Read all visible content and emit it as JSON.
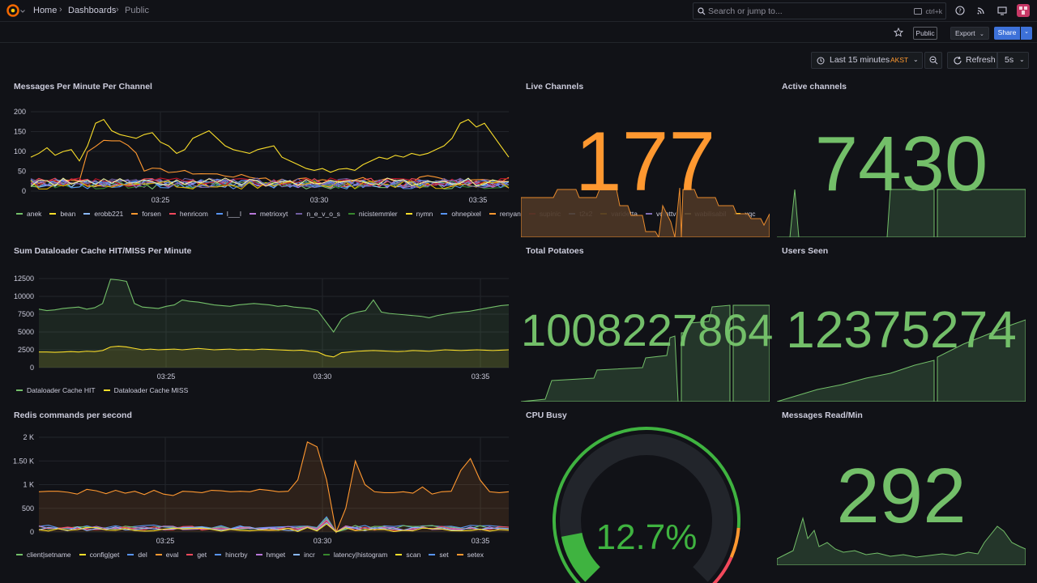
{
  "topbar": {
    "breadcrumbs": [
      "Home",
      "Dashboards",
      "Public"
    ],
    "search_placeholder": "Search or jump to...",
    "search_shortcut": "ctrl+k",
    "icons": [
      "grafana-logo",
      "help-icon",
      "rss-icon",
      "screen-icon",
      "avatar"
    ]
  },
  "toolbar": {
    "public_badge": "Public",
    "export_label": "Export",
    "share_label": "Share",
    "time_range": "Last 15 minutes",
    "timezone": "AKST",
    "refresh_label": "Refresh",
    "refresh_interval": "5s"
  },
  "colors": {
    "green": "#73bf69",
    "orange": "#ff9830",
    "yellow": "#fade2a",
    "blue": "#5794f2",
    "red": "#f2495c",
    "bg": "#111217"
  },
  "panels": {
    "messages": {
      "title": "Messages Per Minute Per Channel",
      "x_ticks": [
        "03:25",
        "03:30",
        "03:35"
      ],
      "y_ticks": [
        "0",
        "50",
        "100",
        "150",
        "200"
      ],
      "legend": [
        {
          "name": "anek",
          "color": "#73bf69"
        },
        {
          "name": "bean",
          "color": "#fade2a"
        },
        {
          "name": "erobb221",
          "color": "#8ab8ff"
        },
        {
          "name": "forsen",
          "color": "#ff9830"
        },
        {
          "name": "henricom",
          "color": "#f2495c"
        },
        {
          "name": "l___l",
          "color": "#5794f2"
        },
        {
          "name": "metrioxyt",
          "color": "#b877d9"
        },
        {
          "name": "n_e_v_o_s",
          "color": "#705da0"
        },
        {
          "name": "nicistemmler",
          "color": "#37872d"
        },
        {
          "name": "nymn",
          "color": "#fade2a"
        },
        {
          "name": "ohnepixel",
          "color": "#5794f2"
        },
        {
          "name": "renyan",
          "color": "#ff9830"
        },
        {
          "name": "supinic",
          "color": "#c4162a"
        },
        {
          "name": "t2x2",
          "color": "#8ab8ff"
        },
        {
          "name": "varidetta",
          "color": "#e0b400"
        },
        {
          "name": "vointtv",
          "color": "#806eb7"
        },
        {
          "name": "wabilisabil",
          "color": "#f4f4a0"
        },
        {
          "name": "xqc",
          "color": "#fade2a"
        }
      ]
    },
    "live_channels": {
      "title": "Live Channels",
      "value": "177"
    },
    "active_channels": {
      "title": "Active channels",
      "value": "7430"
    },
    "cache": {
      "title": "Sum Dataloader Cache HIT/MISS Per Minute",
      "x_ticks": [
        "03:25",
        "03:30",
        "03:35"
      ],
      "y_ticks": [
        "0",
        "2500",
        "5000",
        "7500",
        "10000",
        "12500"
      ],
      "legend": [
        {
          "name": "Dataloader Cache HIT",
          "color": "#73bf69"
        },
        {
          "name": "Dataloader Cache MISS",
          "color": "#fade2a"
        }
      ]
    },
    "potatoes": {
      "title": "Total Potatoes",
      "value": "1008227864"
    },
    "users_seen": {
      "title": "Users Seen",
      "value": "12375274"
    },
    "redis": {
      "title": "Redis commands per second",
      "x_ticks": [
        "03:25",
        "03:30",
        "03:35"
      ],
      "y_ticks": [
        "0",
        "500",
        "1 K",
        "1.50 K",
        "2 K"
      ],
      "legend": [
        {
          "name": "client|setname",
          "color": "#73bf69"
        },
        {
          "name": "config|get",
          "color": "#fade2a"
        },
        {
          "name": "del",
          "color": "#5794f2"
        },
        {
          "name": "eval",
          "color": "#ff9830"
        },
        {
          "name": "get",
          "color": "#f2495c"
        },
        {
          "name": "hincrby",
          "color": "#5794f2"
        },
        {
          "name": "hmget",
          "color": "#b877d9"
        },
        {
          "name": "incr",
          "color": "#8ab8ff"
        },
        {
          "name": "latency|histogram",
          "color": "#37872d"
        },
        {
          "name": "scan",
          "color": "#fade2a"
        },
        {
          "name": "set",
          "color": "#5794f2"
        },
        {
          "name": "setex",
          "color": "#ff9830"
        }
      ]
    },
    "cpu": {
      "title": "CPU Busy",
      "value": "12.7%",
      "percent": 12.7
    },
    "messages_read": {
      "title": "Messages Read/Min",
      "value": "292"
    }
  }
}
